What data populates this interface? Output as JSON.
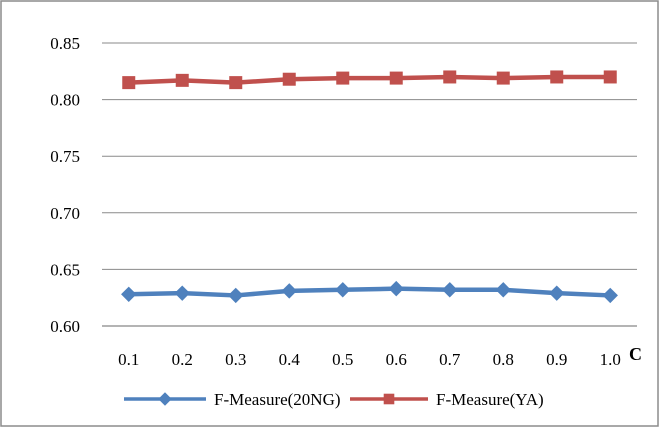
{
  "chart_data": {
    "type": "line",
    "x": [
      "0.1",
      "0.2",
      "0.3",
      "0.4",
      "0.5",
      "0.6",
      "0.7",
      "0.8",
      "0.9",
      "1.0"
    ],
    "xlabel": "C",
    "ylabel": "",
    "title": "",
    "ylim": [
      0.6,
      0.85
    ],
    "yticks": [
      "0.60",
      "0.65",
      "0.70",
      "0.75",
      "0.80",
      "0.85"
    ],
    "grid": "horizontal",
    "legend_position": "bottom",
    "series": [
      {
        "name": "F-Measure(20NG)",
        "marker": "diamond",
        "color": "#4F81BD",
        "values": [
          0.628,
          0.629,
          0.627,
          0.631,
          0.632,
          0.633,
          0.632,
          0.632,
          0.629,
          0.627
        ]
      },
      {
        "name": "F-Measure(YA)",
        "marker": "square",
        "color": "#C0504D",
        "values": [
          0.815,
          0.817,
          0.815,
          0.818,
          0.819,
          0.819,
          0.82,
          0.819,
          0.82,
          0.82
        ]
      }
    ]
  }
}
